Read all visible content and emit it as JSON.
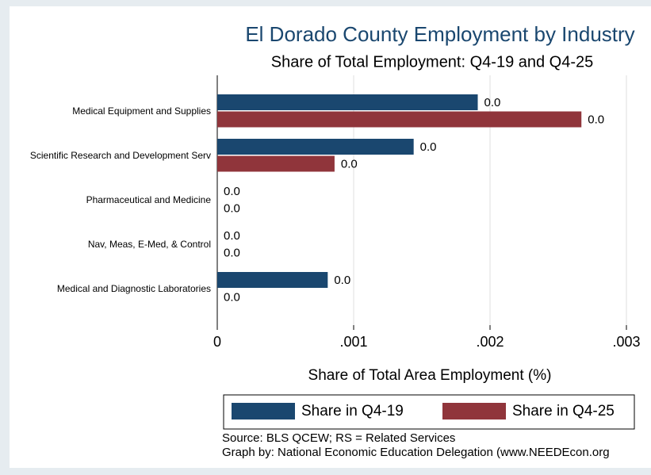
{
  "chart_data": {
    "type": "hbar",
    "title": "El Dorado County Employment by Industry",
    "subtitle": "Share of Total Employment: Q4-19 and Q4-25",
    "x_label": "Share of Total Area Employment (%)",
    "categories": [
      "Medical Equipment and Supplies",
      "Scientific Research and Development Serv",
      "Pharmaceutical and Medicine",
      "Nav, Meas, E-Med, & Control",
      "Medical and Diagnostic Laboratories"
    ],
    "series": [
      {
        "name": "Share in Q4-19",
        "color": "#1a476f",
        "values": [
          0.00191,
          0.00144,
          0,
          0,
          0.00081
        ],
        "value_labels": [
          "0.0",
          "0.0",
          "0.0",
          "0.0",
          "0.0"
        ]
      },
      {
        "name": "Share in Q4-25",
        "color": "#90353b",
        "values": [
          0.00267,
          0.00086,
          0,
          0,
          0
        ],
        "value_labels": [
          "0.0",
          "0.0",
          "0.0",
          "0.0",
          "0.0"
        ]
      }
    ],
    "xlim": [
      0,
      0.003
    ],
    "xticks": [
      0,
      {
        "value": 0.001,
        "label": ".001"
      },
      {
        "value": 0.002,
        "label": ".002"
      },
      {
        "value": 0.003,
        "label": ".003"
      }
    ],
    "grid": true,
    "legend": "bottom",
    "notes": [
      "Source: BLS QCEW; RS = Related Services",
      "Graph by: National Economic Education Delegation (www.NEEDEcon.org"
    ]
  }
}
